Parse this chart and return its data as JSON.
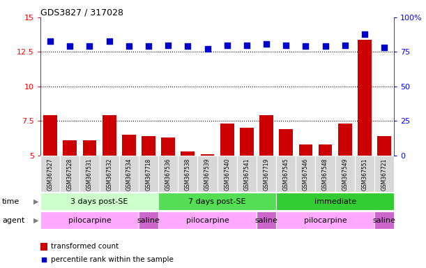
{
  "title": "GDS3827 / 317028",
  "samples": [
    "GSM367527",
    "GSM367528",
    "GSM367531",
    "GSM367532",
    "GSM367534",
    "GSM367718",
    "GSM367536",
    "GSM367538",
    "GSM367539",
    "GSM367540",
    "GSM367541",
    "GSM367719",
    "GSM367545",
    "GSM367546",
    "GSM367548",
    "GSM367549",
    "GSM367551",
    "GSM367721"
  ],
  "transformed_count": [
    7.9,
    6.1,
    6.1,
    7.9,
    6.5,
    6.4,
    6.3,
    5.3,
    5.1,
    7.3,
    7.0,
    7.9,
    6.9,
    5.8,
    5.8,
    7.3,
    13.4,
    6.4
  ],
  "percentile_rank": [
    83,
    79,
    79,
    83,
    79,
    79,
    80,
    79,
    77,
    80,
    80,
    81,
    80,
    79,
    79,
    80,
    88,
    78
  ],
  "ylim_left": [
    5,
    15
  ],
  "ylim_right": [
    0,
    100
  ],
  "yticks_left": [
    5,
    7.5,
    10,
    12.5,
    15
  ],
  "yticks_right": [
    0,
    25,
    50,
    75,
    100
  ],
  "ytick_labels_left": [
    "5",
    "7.5",
    "10",
    "12.5",
    "15"
  ],
  "ytick_labels_right": [
    "0",
    "25",
    "50",
    "75",
    "100%"
  ],
  "bar_color": "#cc0000",
  "dot_color": "#0000cc",
  "time_groups": [
    {
      "label": "3 days post-SE",
      "start": 0,
      "end": 6,
      "color": "#ccffcc"
    },
    {
      "label": "7 days post-SE",
      "start": 6,
      "end": 12,
      "color": "#55dd55"
    },
    {
      "label": "immediate",
      "start": 12,
      "end": 18,
      "color": "#33cc33"
    }
  ],
  "agent_groups": [
    {
      "label": "pilocarpine",
      "start": 0,
      "end": 5,
      "color": "#ffaaff"
    },
    {
      "label": "saline",
      "start": 5,
      "end": 6,
      "color": "#cc66cc"
    },
    {
      "label": "pilocarpine",
      "start": 6,
      "end": 11,
      "color": "#ffaaff"
    },
    {
      "label": "saline",
      "start": 11,
      "end": 12,
      "color": "#cc66cc"
    },
    {
      "label": "pilocarpine",
      "start": 12,
      "end": 17,
      "color": "#ffaaff"
    },
    {
      "label": "saline",
      "start": 17,
      "end": 18,
      "color": "#cc66cc"
    }
  ],
  "legend_bar_label": "transformed count",
  "legend_dot_label": "percentile rank within the sample",
  "time_label": "time",
  "agent_label": "agent",
  "dotted_line_values": [
    7.5,
    10,
    12.5
  ],
  "dot_size": 28,
  "bar_bottom": 5,
  "xticklabel_bg": "#d8d8d8",
  "xticklabel_fontsize": 5.5,
  "axis_label_fontsize": 8,
  "title_fontsize": 9,
  "group_label_fontsize": 8,
  "legend_fontsize": 7.5
}
